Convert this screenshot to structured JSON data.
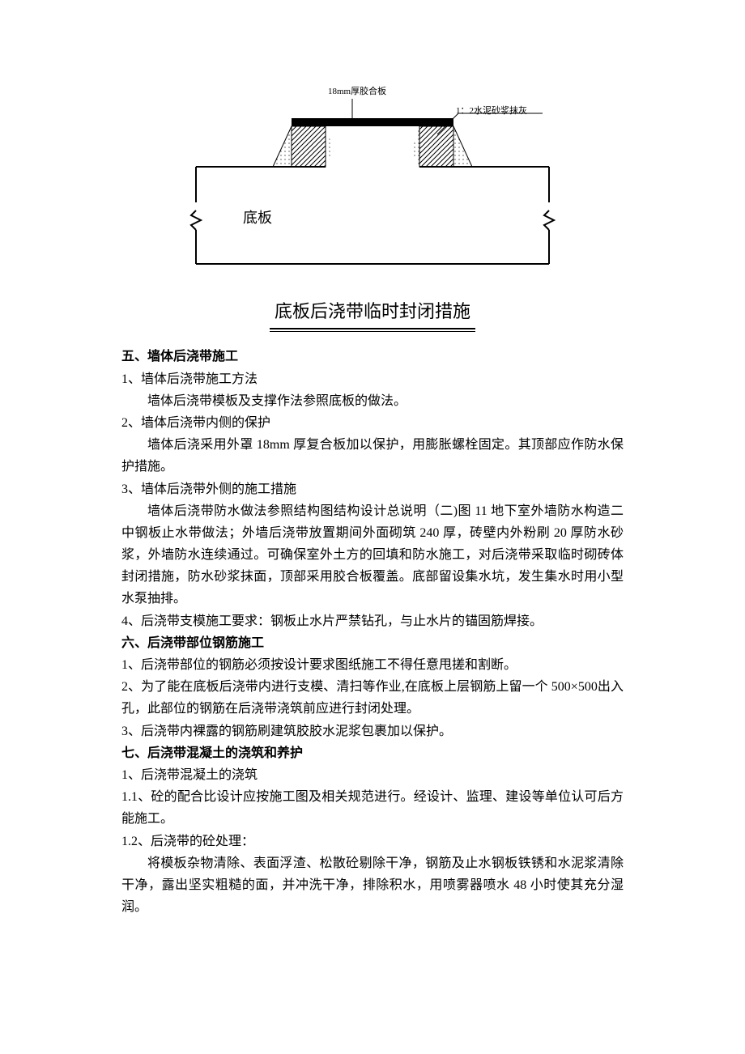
{
  "diagram": {
    "label_top": "18mm厚胶合板",
    "label_right": "1：2水泥砂浆抹灰",
    "label_left": "底板",
    "caption": "底板后浇带临时封闭措施",
    "colors": {
      "stroke": "#000000",
      "fill_plate": "#000000",
      "fill_dots": "#000000",
      "bg": "#ffffff"
    }
  },
  "sections": [
    {
      "title": "五、墙体后浇带施工",
      "items": [
        {
          "num": "1、墙体后浇带施工方法",
          "body": [
            "墙体后浇带模板及支撑作法参照底板的做法。"
          ]
        },
        {
          "num": "2、墙体后浇带内侧的保护",
          "body": [
            "墙体后浇采用外罩 18mm 厚复合板加以保护，用膨胀螺栓固定。其顶部应作防水保护措施。"
          ],
          "bodyNoIndentTail": true
        },
        {
          "num": "3、墙体后浇带外侧的施工措施",
          "body": [
            "墙体后浇带防水做法参照结构图结构设计总说明（二)图 11 地下室外墙防水构造二中钢板止水带做法；外墙后浇带放置期间外面砌筑 240 厚，砖壁内外粉刷 20 厚防水砂浆，外墙防水连续通过。可确保室外土方的回填和防水施工，对后浇带采取临时砌砖体封闭措施，防水砂浆抹面，顶部采用胶合板覆盖。底部留设集水坑，发生集水时用小型水泵抽排。"
          ],
          "bodyNoIndentTail": true
        },
        {
          "num": "4、后浇带支模施工要求：钢板止水片严禁钻孔，与止水片的锚固筋焊接。",
          "body": []
        }
      ]
    },
    {
      "title": "六、后浇带部位钢筋施工",
      "items": [
        {
          "num": "1、后浇带部位的钢筋必须按设计要求图纸施工不得任意甩搓和割断。",
          "body": []
        },
        {
          "num": "2、为了能在底板后浇带内进行支模、清扫等作业,在底板上层钢筋上留一个 500×500出入孔，此部位的钢筋在后浇带浇筑前应进行封闭处理。",
          "body": [],
          "noindentTail": true
        },
        {
          "num": "3、后浇带内裸露的钢筋刷建筑胶胶水泥浆包裹加以保护。",
          "body": []
        }
      ]
    },
    {
      "title": "七、后浇带混凝土的浇筑和养护",
      "items": [
        {
          "num": "1、后浇带混凝土的浇筑",
          "body": []
        },
        {
          "num": "1.1、砼的配合比设计应按施工图及相关规范进行。经设计、监理、建设等单位认可后方能施工。",
          "body": [],
          "noindentTail": true
        },
        {
          "num": "1.2、后浇带的砼处理：",
          "body": [
            "将模板杂物清除、表面浮渣、松散砼剔除干净，钢筋及止水钢板铁锈和水泥浆清除干净，露出坚实粗糙的面，并冲洗干净，排除积水，用喷雾器喷水 48 小时使其充分湿润。"
          ],
          "bodyNoIndentTail": true
        }
      ]
    }
  ]
}
